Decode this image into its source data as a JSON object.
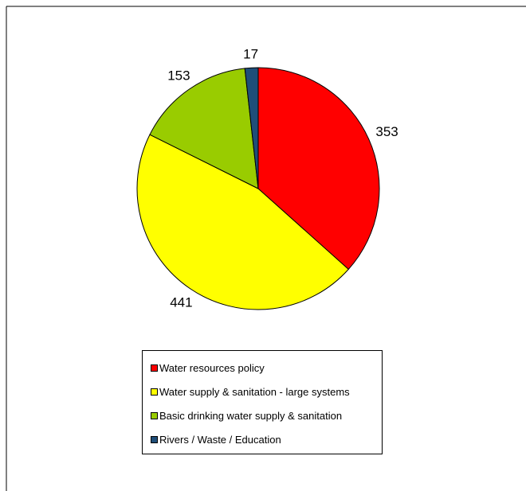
{
  "chart_data": {
    "type": "pie",
    "title": "",
    "categories": [
      "Water resources policy",
      "Water supply & sanitation - large systems",
      "Basic drinking water supply & sanitation",
      "Rivers / Waste / Education"
    ],
    "values": [
      353,
      441,
      153,
      17
    ],
    "data_labels": [
      "353",
      "441",
      "153",
      "17"
    ],
    "colors": [
      "#FF0000",
      "#FFFF00",
      "#99CC00",
      "#1F4E79"
    ],
    "start_angle_deg": 0,
    "direction": "clockwise",
    "legend_position": "bottom"
  },
  "legend": {
    "items": [
      {
        "label": "Water resources policy",
        "color": "#FF0000"
      },
      {
        "label": "Water supply & sanitation - large systems",
        "color": "#FFFF00"
      },
      {
        "label": "Basic drinking water supply & sanitation",
        "color": "#99CC00"
      },
      {
        "label": "Rivers / Waste / Education",
        "color": "#1F4E79"
      }
    ]
  }
}
